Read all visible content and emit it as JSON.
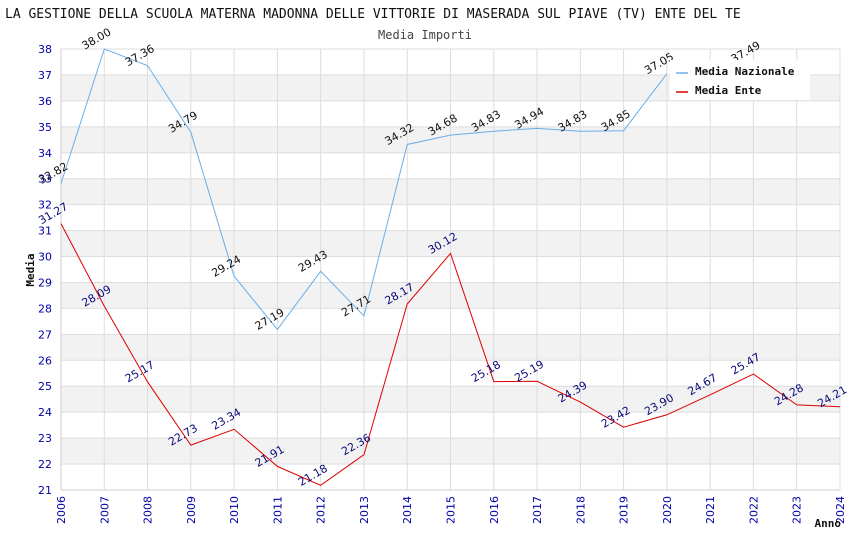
{
  "chart_data": {
    "type": "line",
    "title": "LA GESTIONE DELLA SCUOLA MATERNA MADONNA DELLE VITTORIE DI MASERADA SUL PIAVE (TV) ENTE DEL TE",
    "subtitle": "Media Importi",
    "xlabel": "Anno",
    "ylabel": "Media",
    "ylim": [
      21,
      38
    ],
    "grid": true,
    "legend_position": "top-right",
    "categories": [
      "2006",
      "2007",
      "2008",
      "2009",
      "2010",
      "2011",
      "2012",
      "2013",
      "2014",
      "2015",
      "2016",
      "2017",
      "2018",
      "2019",
      "2020",
      "2021",
      "2022",
      "2023",
      "2024"
    ],
    "series": [
      {
        "name": "Media Nazionale",
        "color": "#6aaee8",
        "values": [
          32.82,
          38.0,
          37.36,
          34.79,
          29.24,
          27.19,
          29.43,
          27.71,
          34.32,
          34.68,
          34.83,
          34.94,
          34.83,
          34.85,
          37.05,
          null,
          37.49,
          null,
          null
        ],
        "labels": [
          "32.82",
          "38.00",
          "37.36",
          "34.79",
          "29.24",
          "27.19",
          "29.43",
          "27.71",
          "34.32",
          "34.68",
          "34.83",
          "34.94",
          "34.83",
          "34.85",
          "37.05",
          null,
          "37.49",
          null,
          null
        ]
      },
      {
        "name": "Media Ente",
        "color": "#dd0000",
        "values": [
          31.27,
          28.09,
          25.17,
          22.73,
          23.34,
          21.91,
          21.18,
          22.36,
          28.17,
          30.12,
          25.18,
          25.19,
          24.39,
          23.42,
          23.9,
          24.67,
          25.47,
          24.28,
          24.21
        ],
        "labels": [
          "31.27",
          "28.09",
          "25.17",
          "22.73",
          "23.34",
          "21.91",
          "21.18",
          "22.36",
          "28.17",
          "30.12",
          "25.18",
          "25.19",
          "24.39",
          "23.42",
          "23.90",
          "24.67",
          "25.47",
          "24.28",
          "24.21"
        ]
      }
    ]
  }
}
